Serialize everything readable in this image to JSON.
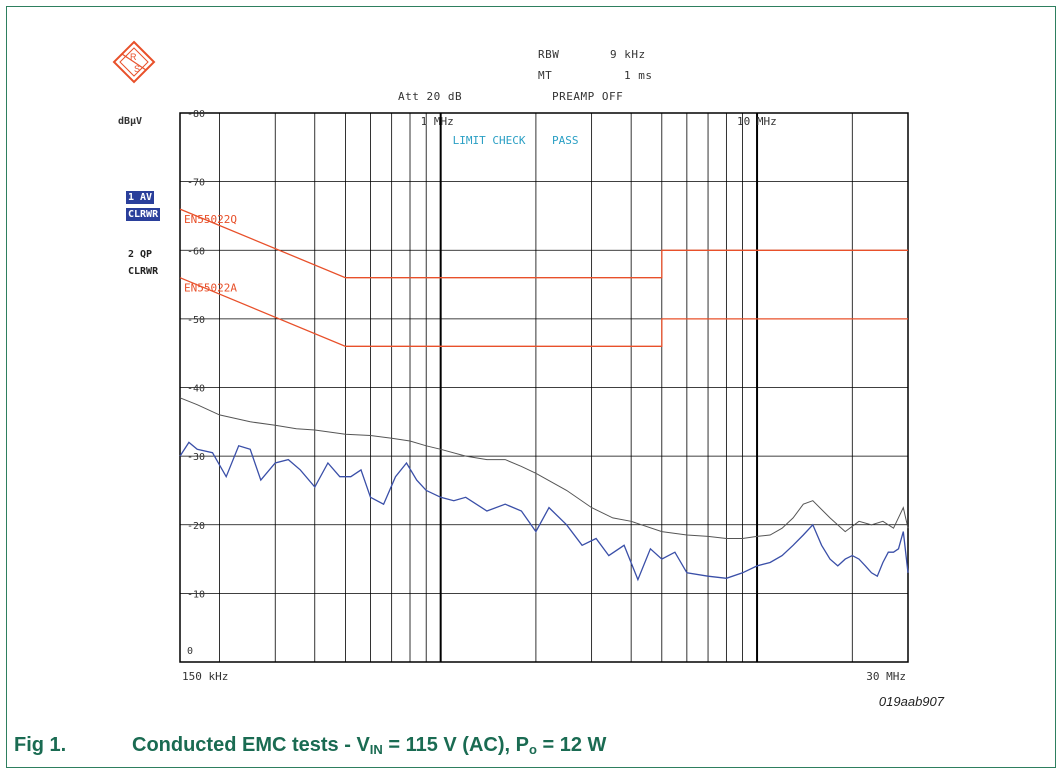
{
  "header": {
    "rbw_label": "RBW",
    "rbw_value": "9 kHz",
    "mt_label": "MT",
    "mt_value": "1 ms",
    "att": "Att 20 dB",
    "preamp": "PREAMP OFF"
  },
  "traces": {
    "t1_num": "1 AV",
    "t1_mode": "CLRWR",
    "t2_num": "2 QP",
    "t2_mode": "CLRWR"
  },
  "figure_code": "019aab907",
  "caption": {
    "label": "Fig 1.",
    "text_a": "Conducted EMC tests - V",
    "sub_in": "IN",
    "text_b": " = 115 V (AC), P",
    "sub_o": "o",
    "text_c": " = 12 W"
  },
  "colors": {
    "grid": "#000000",
    "qp_trace": "#555555",
    "av_trace": "#3a4fa8",
    "limit": "#e8502a",
    "limit_check": "#2a9fc4",
    "caption": "#1a6b52"
  },
  "chart_data": {
    "type": "line",
    "ylabel": "dBµV",
    "ylim": [
      0,
      80
    ],
    "y_ticks": [
      0,
      10,
      20,
      30,
      40,
      50,
      60,
      70,
      80
    ],
    "x_scale": "log",
    "xlim_mhz": [
      0.15,
      30
    ],
    "x_tick_labels": [
      {
        "mhz": 0.15,
        "label": "150 kHz"
      },
      {
        "mhz": 1,
        "label": "1 MHz"
      },
      {
        "mhz": 10,
        "label": "10 MHz"
      },
      {
        "mhz": 30,
        "label": "30 MHz"
      }
    ],
    "annotation": "LIMIT CHECK    PASS",
    "limit_lines": [
      {
        "name": "EN55022Q",
        "points": [
          [
            0.15,
            66
          ],
          [
            0.5,
            56
          ],
          [
            5,
            56
          ],
          [
            5,
            60
          ],
          [
            30,
            60
          ]
        ]
      },
      {
        "name": "EN55022A",
        "points": [
          [
            0.15,
            56
          ],
          [
            0.5,
            46
          ],
          [
            5,
            46
          ],
          [
            5,
            50
          ],
          [
            30,
            50
          ]
        ]
      }
    ],
    "series": [
      {
        "name": "2 QP",
        "x": [
          0.15,
          0.17,
          0.2,
          0.25,
          0.3,
          0.35,
          0.4,
          0.5,
          0.6,
          0.7,
          0.8,
          0.9,
          1.0,
          1.2,
          1.4,
          1.6,
          1.8,
          2.0,
          2.5,
          3.0,
          3.5,
          4.0,
          5.0,
          6.0,
          7.0,
          8.0,
          9.0,
          10,
          11,
          12,
          13,
          14,
          15,
          17,
          19,
          21,
          23,
          25,
          27,
          29,
          30
        ],
        "y": [
          38.5,
          37.5,
          36,
          35,
          34.5,
          34,
          33.8,
          33.2,
          33,
          32.6,
          32.2,
          31.5,
          31,
          30,
          29.5,
          29.5,
          28.5,
          27.5,
          25,
          22.5,
          21,
          20.5,
          19,
          18.5,
          18.3,
          18,
          18,
          18.3,
          18.5,
          19.5,
          21,
          23,
          23.5,
          21,
          19,
          20.5,
          20,
          20.5,
          19.5,
          22.5,
          19.5
        ]
      },
      {
        "name": "1 AV",
        "x": [
          0.15,
          0.16,
          0.17,
          0.19,
          0.21,
          0.23,
          0.25,
          0.27,
          0.3,
          0.33,
          0.36,
          0.4,
          0.44,
          0.48,
          0.52,
          0.56,
          0.6,
          0.66,
          0.72,
          0.78,
          0.84,
          0.9,
          1.0,
          1.1,
          1.2,
          1.4,
          1.6,
          1.8,
          2.0,
          2.2,
          2.5,
          2.8,
          3.1,
          3.4,
          3.8,
          4.2,
          4.6,
          5.0,
          5.5,
          6.0,
          7.0,
          8.0,
          9.0,
          10,
          11,
          12,
          13,
          14,
          15,
          16,
          17,
          18,
          19,
          20,
          21,
          22,
          23,
          24,
          25,
          26,
          27,
          28,
          29,
          30
        ],
        "y": [
          30,
          32,
          31,
          30.5,
          27,
          31.5,
          31,
          26.5,
          29,
          29.5,
          28,
          25.5,
          29,
          27,
          27,
          28,
          24,
          23,
          27,
          29,
          26.5,
          25,
          24,
          23.5,
          24,
          22,
          23,
          22,
          19,
          22.5,
          20,
          17,
          18,
          15.5,
          17,
          12,
          16.5,
          15,
          16,
          13,
          12.5,
          12.2,
          13,
          14,
          14.5,
          15.5,
          17,
          18.5,
          20,
          17,
          15,
          14,
          15,
          15.5,
          15,
          14,
          13,
          12.5,
          14.5,
          16,
          16,
          16.5,
          19,
          13
        ]
      }
    ]
  }
}
